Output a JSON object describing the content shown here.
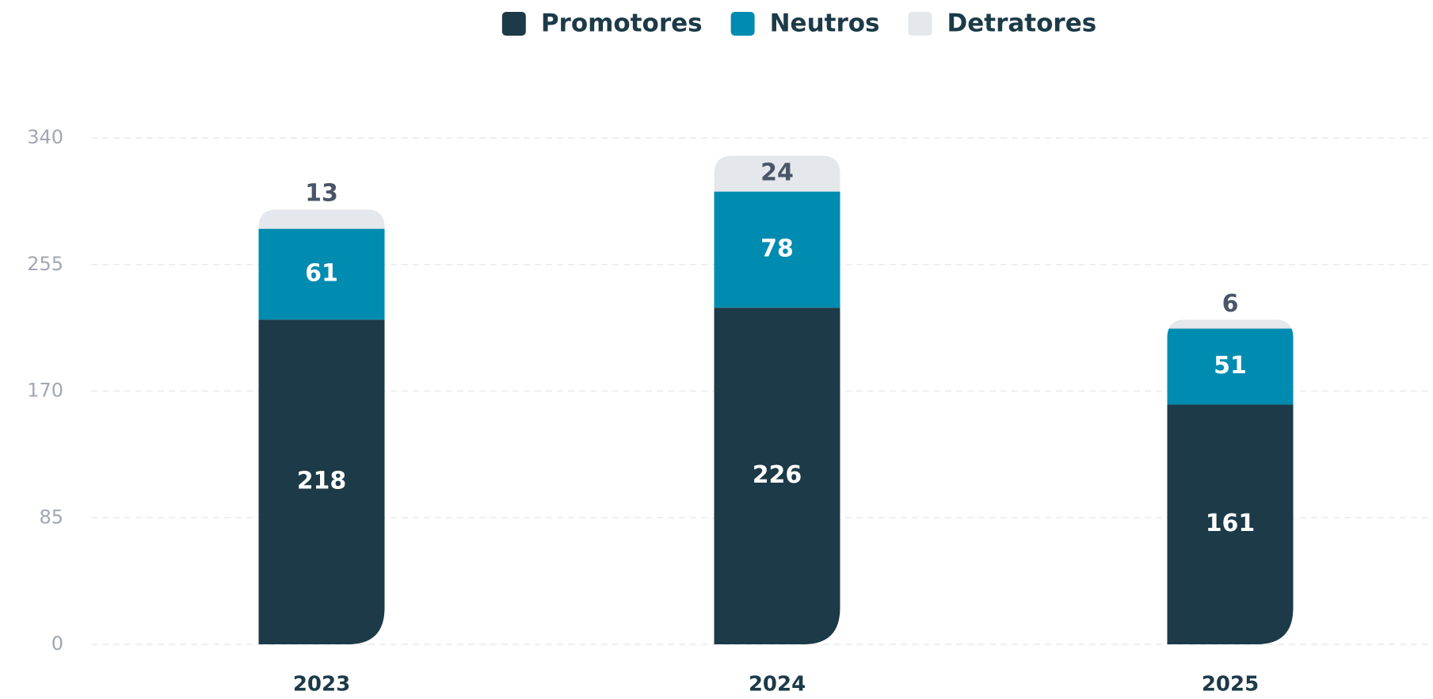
{
  "chart_data": {
    "type": "bar",
    "stacked": true,
    "categories": [
      "2023",
      "2024",
      "2025"
    ],
    "series": [
      {
        "name": "Promotores",
        "color": "#1c3a47",
        "values": [
          218,
          226,
          161
        ]
      },
      {
        "name": "Neutros",
        "color": "#008bb0",
        "values": [
          61,
          78,
          51
        ]
      },
      {
        "name": "Detratores",
        "color": "#e4e7eb",
        "values": [
          13,
          24,
          6
        ]
      }
    ],
    "ylim": [
      0,
      340
    ],
    "yticks": [
      0,
      85,
      170,
      255,
      340
    ],
    "grid": true,
    "legend": "top"
  }
}
